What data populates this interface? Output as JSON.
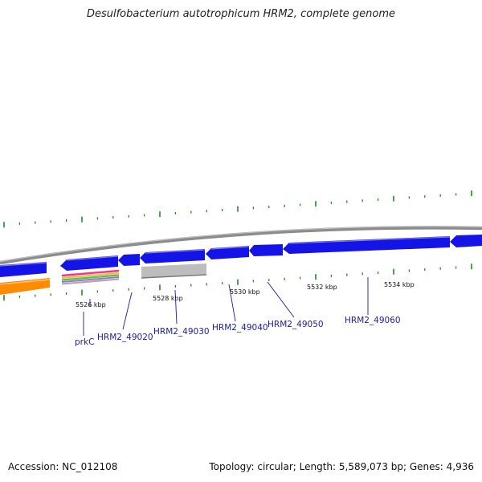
{
  "title": "Desulfobacterium autotrophicum HRM2, complete genome",
  "footer": {
    "accession": "Accession: NC_012108",
    "summary": "Topology: circular; Length: 5,589,073 bp; Genes: 4,936"
  },
  "colors": {
    "forward_gene": "#1414e6",
    "backbone": "#8c8c8c",
    "tick": "#1e8c1e",
    "gene_label": "#1a1aa8",
    "orange_feature": "#ff8c00",
    "gray_feature": "#bdbdbd"
  },
  "scale_labels": [
    "5526 kbp",
    "5528 kbp",
    "5530 kbp",
    "5532 kbp",
    "5534 kbp"
  ],
  "genes": [
    "prkC",
    "HRM2_49020",
    "HRM2_49030",
    "HRM2_49040",
    "HRM2_49050",
    "HRM2_49060"
  ]
}
